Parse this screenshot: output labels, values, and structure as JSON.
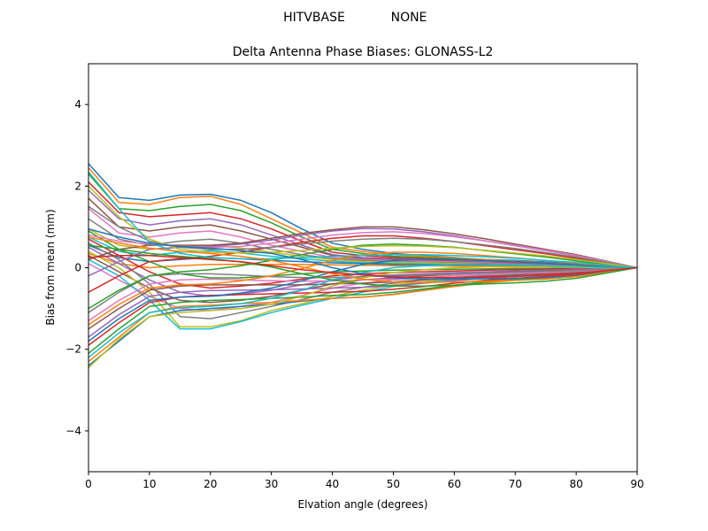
{
  "figure": {
    "suptitle_left": "HITVBASE",
    "suptitle_right": "NONE"
  },
  "colors": {
    "cycle": [
      "#1f77b4",
      "#ff7f0e",
      "#2ca02c",
      "#d62728",
      "#9467bd",
      "#8c564b",
      "#e377c2",
      "#7f7f7f",
      "#bcbd22",
      "#17becf"
    ]
  },
  "chart_data": {
    "type": "line",
    "title": "Delta Antenna Phase Biases: GLONASS-L2",
    "xlabel": "Elvation angle (degrees)",
    "ylabel": "Bias from mean (mm)",
    "xlim": [
      0,
      90
    ],
    "ylim": [
      -5,
      5
    ],
    "xticks": [
      0,
      10,
      20,
      30,
      40,
      50,
      60,
      70,
      80,
      90
    ],
    "yticks": [
      -4,
      -2,
      0,
      2,
      4
    ],
    "xtick_labels": [
      "0",
      "10",
      "20",
      "30",
      "40",
      "50",
      "60",
      "70",
      "80",
      "90"
    ],
    "ytick_labels": [
      "−4",
      "−2",
      "0",
      "2",
      "4"
    ],
    "grid": false,
    "legend": "none",
    "x": [
      0,
      5,
      10,
      15,
      20,
      25,
      30,
      35,
      40,
      45,
      50,
      55,
      60,
      65,
      70,
      75,
      80,
      85,
      90
    ],
    "series": [
      {
        "values": [
          2.55,
          1.72,
          1.65,
          1.78,
          1.8,
          1.65,
          1.35,
          0.95,
          0.6,
          0.45,
          0.35,
          0.3,
          0.25,
          0.2,
          0.18,
          0.14,
          0.1,
          0.05,
          0
        ]
      },
      {
        "values": [
          2.45,
          1.6,
          1.55,
          1.72,
          1.75,
          1.55,
          1.2,
          0.85,
          0.5,
          0.4,
          0.32,
          0.28,
          0.24,
          0.2,
          0.16,
          0.12,
          0.08,
          0.04,
          0
        ]
      },
      {
        "values": [
          2.3,
          1.45,
          1.4,
          1.5,
          1.55,
          1.4,
          1.1,
          0.75,
          0.45,
          0.35,
          0.28,
          0.25,
          0.22,
          0.18,
          0.14,
          0.1,
          0.07,
          0.03,
          0
        ]
      },
      {
        "values": [
          2.1,
          1.35,
          1.25,
          1.3,
          1.35,
          1.2,
          0.95,
          0.65,
          0.38,
          0.3,
          0.25,
          0.22,
          0.2,
          0.16,
          0.12,
          0.09,
          0.06,
          0.03,
          0
        ]
      },
      {
        "values": [
          1.9,
          1.2,
          1.05,
          1.15,
          1.2,
          1.05,
          0.8,
          0.55,
          0.32,
          0.25,
          0.22,
          0.2,
          0.18,
          0.15,
          0.11,
          0.08,
          0.05,
          0.02,
          0
        ]
      },
      {
        "values": [
          1.7,
          1.0,
          0.9,
          1.0,
          1.05,
          0.9,
          0.7,
          0.5,
          0.3,
          0.22,
          0.2,
          0.18,
          0.16,
          0.13,
          0.1,
          0.07,
          0.05,
          0.02,
          0
        ]
      },
      {
        "values": [
          1.45,
          0.85,
          0.75,
          0.85,
          0.9,
          0.75,
          0.55,
          0.4,
          0.25,
          0.2,
          0.18,
          0.16,
          0.14,
          0.12,
          0.09,
          0.06,
          0.04,
          0.02,
          0
        ]
      },
      {
        "values": [
          1.2,
          0.7,
          0.55,
          0.65,
          0.7,
          0.6,
          0.45,
          0.32,
          0.22,
          0.18,
          0.15,
          0.13,
          0.12,
          0.1,
          0.08,
          0.05,
          0.03,
          0.01,
          0
        ]
      },
      {
        "values": [
          0.95,
          0.55,
          0.45,
          0.5,
          0.55,
          0.48,
          0.38,
          0.28,
          0.2,
          0.15,
          0.13,
          0.12,
          0.1,
          0.08,
          0.06,
          0.04,
          0.03,
          0.01,
          0
        ]
      },
      {
        "values": [
          0.75,
          0.4,
          0.3,
          0.38,
          0.42,
          0.36,
          0.28,
          0.22,
          0.16,
          0.12,
          0.1,
          0.09,
          0.08,
          0.07,
          0.05,
          0.04,
          0.02,
          0.01,
          0
        ]
      },
      {
        "values": [
          0.55,
          0.25,
          0.15,
          0.2,
          0.25,
          0.22,
          0.18,
          0.15,
          0.12,
          0.1,
          0.08,
          0.07,
          0.06,
          0.05,
          0.04,
          0.03,
          0.02,
          0.01,
          0
        ]
      },
      {
        "values": [
          0.35,
          0.1,
          0.0,
          0.05,
          0.08,
          0.08,
          0.08,
          0.08,
          0.07,
          0.06,
          0.05,
          0.05,
          0.04,
          0.04,
          0.03,
          0.02,
          0.01,
          0.0,
          0
        ]
      },
      {
        "values": [
          0.9,
          0.45,
          0.15,
          -0.15,
          -0.25,
          -0.25,
          -0.2,
          -0.15,
          -0.1,
          -0.08,
          -0.06,
          -0.05,
          -0.04,
          -0.03,
          -0.02,
          -0.02,
          -0.01,
          0.0,
          0
        ]
      },
      {
        "values": [
          0.7,
          0.3,
          -0.1,
          -0.4,
          -0.5,
          -0.45,
          -0.38,
          -0.28,
          -0.2,
          -0.15,
          -0.12,
          -0.1,
          -0.08,
          -0.06,
          -0.05,
          -0.04,
          -0.02,
          -0.01,
          0
        ]
      },
      {
        "values": [
          0.5,
          0.1,
          -0.3,
          -0.6,
          -0.7,
          -0.65,
          -0.55,
          -0.42,
          -0.3,
          -0.22,
          -0.18,
          -0.15,
          -0.12,
          -0.1,
          -0.08,
          -0.06,
          -0.04,
          -0.02,
          0
        ]
      },
      {
        "values": [
          0.3,
          -0.1,
          -0.5,
          -0.8,
          -0.85,
          -0.8,
          -0.7,
          -0.55,
          -0.4,
          -0.3,
          -0.25,
          -0.2,
          -0.16,
          -0.13,
          -0.1,
          -0.08,
          -0.05,
          -0.02,
          0
        ]
      },
      {
        "values": [
          0.1,
          -0.3,
          -0.7,
          -1.0,
          -1.05,
          -0.95,
          -0.85,
          -0.68,
          -0.5,
          -0.38,
          -0.3,
          -0.25,
          -0.2,
          -0.16,
          -0.13,
          -0.1,
          -0.06,
          -0.03,
          0
        ]
      },
      {
        "values": [
          0.6,
          0.2,
          -0.4,
          -1.2,
          -1.25,
          -1.1,
          -0.95,
          -0.78,
          -0.6,
          -0.48,
          -0.38,
          -0.3,
          -0.24,
          -0.19,
          -0.15,
          -0.11,
          -0.07,
          -0.03,
          0
        ]
      },
      {
        "values": [
          0.4,
          0.0,
          -0.6,
          -1.45,
          -1.45,
          -1.3,
          -1.05,
          -0.88,
          -0.7,
          -0.55,
          -0.42,
          -0.34,
          -0.27,
          -0.21,
          -0.16,
          -0.12,
          -0.08,
          -0.04,
          0
        ]
      },
      {
        "values": [
          0.2,
          -0.2,
          -0.8,
          -1.5,
          -1.5,
          -1.32,
          -1.1,
          -0.92,
          -0.75,
          -0.6,
          -0.46,
          -0.37,
          -0.29,
          -0.23,
          -0.17,
          -0.13,
          -0.09,
          -0.04,
          0
        ]
      },
      {
        "values": [
          -2.4,
          -1.8,
          -1.2,
          -1.05,
          -1.0,
          -0.95,
          -0.9,
          -0.82,
          -0.75,
          -0.72,
          -0.65,
          -0.55,
          -0.45,
          -0.36,
          -0.3,
          -0.25,
          -0.2,
          -0.1,
          0
        ]
      },
      {
        "values": [
          -2.3,
          -1.7,
          -1.1,
          -0.95,
          -0.92,
          -0.88,
          -0.85,
          -0.8,
          -0.75,
          -0.72,
          -0.66,
          -0.56,
          -0.46,
          -0.37,
          -0.31,
          -0.26,
          -0.21,
          -0.1,
          0
        ]
      },
      {
        "values": [
          -2.1,
          -1.5,
          -0.95,
          -0.85,
          -0.8,
          -0.78,
          -0.75,
          -0.72,
          -0.68,
          -0.66,
          -0.6,
          -0.52,
          -0.43,
          -0.35,
          -0.29,
          -0.24,
          -0.19,
          -0.09,
          0
        ]
      },
      {
        "values": [
          -1.9,
          -1.35,
          -0.85,
          -0.72,
          -0.68,
          -0.66,
          -0.64,
          -0.62,
          -0.6,
          -0.58,
          -0.53,
          -0.46,
          -0.38,
          -0.31,
          -0.26,
          -0.21,
          -0.16,
          -0.08,
          0
        ]
      },
      {
        "values": [
          -1.7,
          -1.15,
          -0.7,
          -0.6,
          -0.56,
          -0.55,
          -0.54,
          -0.52,
          -0.5,
          -0.48,
          -0.44,
          -0.38,
          -0.32,
          -0.26,
          -0.22,
          -0.18,
          -0.14,
          -0.07,
          0
        ]
      },
      {
        "values": [
          -1.5,
          -1.0,
          -0.55,
          -0.45,
          -0.42,
          -0.42,
          -0.42,
          -0.42,
          -0.4,
          -0.38,
          -0.35,
          -0.3,
          -0.26,
          -0.21,
          -0.18,
          -0.15,
          -0.11,
          -0.06,
          0
        ]
      },
      {
        "values": [
          -1.3,
          -0.8,
          -0.4,
          -0.3,
          -0.28,
          -0.3,
          -0.32,
          -0.33,
          -0.32,
          -0.3,
          -0.28,
          -0.24,
          -0.2,
          -0.17,
          -0.14,
          -0.12,
          -0.09,
          -0.05,
          0
        ]
      },
      {
        "values": [
          -1.1,
          -0.6,
          -0.2,
          -0.15,
          -0.15,
          -0.18,
          -0.22,
          -0.24,
          -0.24,
          -0.22,
          -0.2,
          -0.18,
          -0.15,
          -0.13,
          -0.11,
          -0.09,
          -0.07,
          -0.04,
          0
        ]
      },
      {
        "values": [
          -2.45,
          -1.75,
          -1.2,
          -1.1,
          -1.05,
          -1.0,
          -0.9,
          -0.7,
          -0.45,
          -0.25,
          -0.12,
          -0.05,
          0.0,
          0.02,
          0.02,
          0.02,
          0.01,
          0.0,
          0
        ]
      },
      {
        "values": [
          -2.2,
          -1.6,
          -1.1,
          -0.98,
          -0.95,
          -0.88,
          -0.75,
          -0.55,
          -0.3,
          -0.12,
          0.0,
          0.05,
          0.08,
          0.08,
          0.07,
          0.05,
          0.03,
          0.01,
          0
        ]
      },
      {
        "values": [
          -1.8,
          -1.25,
          -0.8,
          -0.72,
          -0.7,
          -0.62,
          -0.5,
          -0.32,
          -0.1,
          0.08,
          0.18,
          0.2,
          0.2,
          0.18,
          0.15,
          0.11,
          0.07,
          0.03,
          0
        ]
      },
      {
        "values": [
          -1.4,
          -0.9,
          -0.5,
          -0.42,
          -0.4,
          -0.32,
          -0.2,
          -0.02,
          0.18,
          0.32,
          0.38,
          0.38,
          0.35,
          0.3,
          0.24,
          0.18,
          0.12,
          0.05,
          0
        ]
      },
      {
        "values": [
          -1.0,
          -0.55,
          -0.2,
          -0.1,
          -0.05,
          0.05,
          0.18,
          0.32,
          0.45,
          0.55,
          0.58,
          0.55,
          0.5,
          0.42,
          0.34,
          0.26,
          0.17,
          0.08,
          0
        ]
      },
      {
        "values": [
          -0.6,
          -0.2,
          0.15,
          0.22,
          0.28,
          0.38,
          0.5,
          0.62,
          0.72,
          0.78,
          0.78,
          0.72,
          0.64,
          0.54,
          0.44,
          0.34,
          0.23,
          0.11,
          0
        ]
      },
      {
        "values": [
          -0.2,
          0.15,
          0.45,
          0.5,
          0.52,
          0.58,
          0.68,
          0.8,
          0.9,
          0.96,
          0.95,
          0.88,
          0.78,
          0.66,
          0.54,
          0.42,
          0.29,
          0.14,
          0
        ]
      },
      {
        "values": [
          0.2,
          0.45,
          0.55,
          0.55,
          0.55,
          0.6,
          0.72,
          0.84,
          0.93,
          1.0,
          1.0,
          0.93,
          0.83,
          0.71,
          0.58,
          0.45,
          0.32,
          0.16,
          0
        ]
      },
      {
        "values": [
          0.8,
          0.65,
          0.58,
          0.52,
          0.5,
          0.52,
          0.6,
          0.7,
          0.8,
          0.86,
          0.88,
          0.84,
          0.76,
          0.66,
          0.55,
          0.43,
          0.3,
          0.15,
          0
        ]
      },
      {
        "values": [
          1.5,
          1.0,
          0.65,
          0.5,
          0.45,
          0.45,
          0.5,
          0.58,
          0.65,
          0.7,
          0.72,
          0.7,
          0.64,
          0.56,
          0.47,
          0.37,
          0.26,
          0.13,
          0
        ]
      },
      {
        "values": [
          2.0,
          1.25,
          0.7,
          0.45,
          0.38,
          0.36,
          0.38,
          0.42,
          0.48,
          0.52,
          0.54,
          0.53,
          0.49,
          0.43,
          0.36,
          0.29,
          0.2,
          0.1,
          0
        ]
      },
      {
        "values": [
          2.35,
          1.45,
          0.62,
          0.35,
          0.25,
          0.22,
          0.22,
          0.25,
          0.28,
          0.3,
          0.32,
          0.32,
          0.3,
          0.27,
          0.23,
          0.18,
          0.13,
          0.06,
          0
        ]
      },
      {
        "values": [
          0.95,
          0.75,
          0.6,
          0.52,
          0.48,
          0.42,
          0.35,
          0.2,
          0.0,
          -0.15,
          -0.25,
          -0.28,
          -0.28,
          -0.27,
          -0.26,
          -0.24,
          -0.2,
          -0.1,
          0
        ]
      },
      {
        "values": [
          0.75,
          0.6,
          0.48,
          0.4,
          0.35,
          0.28,
          0.18,
          0.02,
          -0.15,
          -0.28,
          -0.35,
          -0.36,
          -0.35,
          -0.33,
          -0.31,
          -0.28,
          -0.22,
          -0.11,
          0
        ]
      },
      {
        "values": [
          0.55,
          0.45,
          0.35,
          0.28,
          0.22,
          0.14,
          0.02,
          -0.15,
          -0.3,
          -0.4,
          -0.45,
          -0.45,
          -0.43,
          -0.4,
          -0.37,
          -0.33,
          -0.26,
          -0.13,
          0
        ]
      },
      {
        "values": [
          0.25,
          0.3,
          0.3,
          0.25,
          0.2,
          0.15,
          0.05,
          -0.05,
          -0.12,
          -0.18,
          -0.22,
          -0.24,
          -0.24,
          -0.23,
          -0.21,
          -0.18,
          -0.14,
          -0.07,
          0
        ]
      }
    ]
  }
}
